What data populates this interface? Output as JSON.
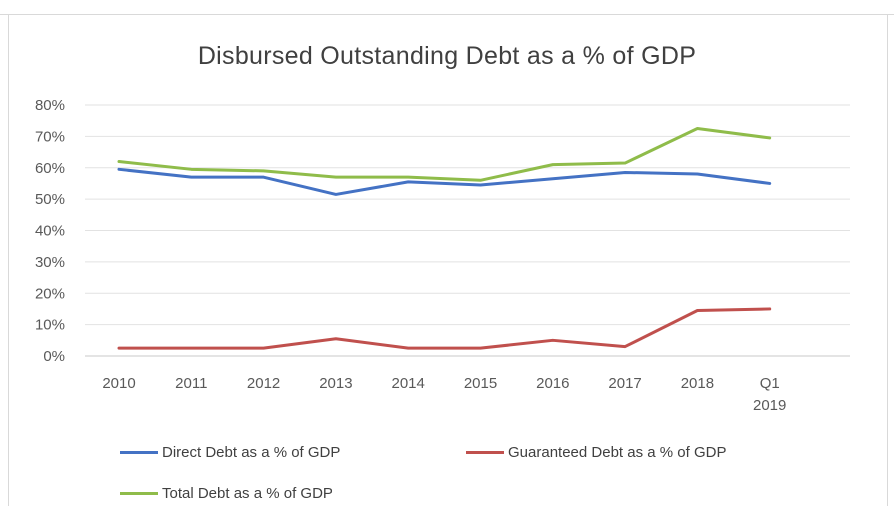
{
  "chart_data": {
    "type": "line",
    "title": "Disbursed Outstanding Debt as a % of GDP",
    "categories": [
      "2010",
      "2011",
      "2012",
      "2013",
      "2014",
      "2015",
      "2016",
      "2017",
      "2018",
      "Q1 2019"
    ],
    "category_lines": [
      [
        "2010"
      ],
      [
        "2011"
      ],
      [
        "2012"
      ],
      [
        "2013"
      ],
      [
        "2014"
      ],
      [
        "2015"
      ],
      [
        "2016"
      ],
      [
        "2017"
      ],
      [
        "2018"
      ],
      [
        "Q1",
        "2019"
      ]
    ],
    "ylim": [
      0,
      80
    ],
    "yticks": [
      0,
      10,
      20,
      30,
      40,
      50,
      60,
      70,
      80
    ],
    "ytick_labels": [
      "0%",
      "10%",
      "20%",
      "30%",
      "40%",
      "50%",
      "60%",
      "70%",
      "80%"
    ],
    "grid": true,
    "legend_position": "bottom",
    "series": [
      {
        "name": "Direct Debt as a % of GDP",
        "color": "#4472c4",
        "values": [
          59.5,
          57,
          57,
          51.5,
          55.5,
          54.5,
          56.5,
          58.5,
          58,
          55
        ]
      },
      {
        "name": "Guaranteed Debt as a % of GDP",
        "color": "#c0504d",
        "values": [
          2.5,
          2.5,
          2.5,
          5.5,
          2.5,
          2.5,
          5,
          3,
          14.5,
          15
        ]
      },
      {
        "name": "Total Debt as a % of GDP",
        "color": "#8fbc4a",
        "values": [
          62,
          59.5,
          59,
          57,
          57,
          56,
          61,
          61.5,
          72.5,
          69.5
        ]
      }
    ]
  }
}
